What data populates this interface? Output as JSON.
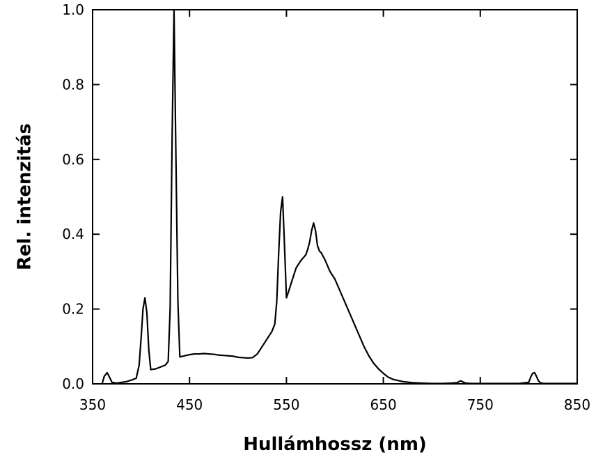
{
  "chart_data": {
    "type": "line",
    "title": "",
    "xlabel": "Hullámhossz (nm)",
    "ylabel": "Rel. intenzitás",
    "xlim": [
      350,
      850
    ],
    "ylim": [
      0,
      1.0
    ],
    "x_ticks": [
      350,
      450,
      550,
      650,
      750,
      850
    ],
    "x_tick_labels": [
      "350",
      "450",
      "550",
      "650",
      "750",
      "850"
    ],
    "y_ticks": [
      0,
      0.2,
      0.4,
      0.6,
      0.8,
      1.0
    ],
    "y_tick_labels": [
      "0.0",
      "0.2",
      "0.4",
      "0.6",
      "0.8",
      "1.0"
    ],
    "grid": false,
    "line_color": "#000000",
    "series": [
      {
        "name": "",
        "x": [
          360,
          362,
          365,
          367,
          370,
          375,
          380,
          385,
          390,
          395,
          398,
          400,
          402,
          404,
          406,
          408,
          410,
          415,
          420,
          425,
          428,
          430,
          432,
          434,
          436,
          438,
          440,
          445,
          450,
          455,
          460,
          465,
          470,
          475,
          480,
          485,
          490,
          495,
          500,
          505,
          510,
          515,
          520,
          525,
          530,
          535,
          538,
          540,
          542,
          544,
          546,
          548,
          550,
          552,
          555,
          560,
          565,
          570,
          572,
          574,
          576,
          578,
          580,
          582,
          584,
          586,
          590,
          595,
          600,
          605,
          610,
          615,
          620,
          625,
          630,
          635,
          640,
          645,
          650,
          655,
          660,
          670,
          680,
          690,
          700,
          710,
          720,
          726,
          728,
          730,
          732,
          735,
          740,
          750,
          760,
          770,
          780,
          790,
          800,
          802,
          804,
          806,
          808,
          810,
          812,
          815,
          820,
          830,
          840,
          850
        ],
        "y": [
          0.002,
          0.02,
          0.03,
          0.02,
          0.004,
          0.002,
          0.004,
          0.006,
          0.01,
          0.015,
          0.05,
          0.12,
          0.2,
          0.23,
          0.19,
          0.09,
          0.038,
          0.04,
          0.045,
          0.05,
          0.06,
          0.2,
          0.65,
          1.0,
          0.6,
          0.22,
          0.072,
          0.075,
          0.078,
          0.08,
          0.08,
          0.081,
          0.08,
          0.079,
          0.077,
          0.076,
          0.075,
          0.074,
          0.071,
          0.07,
          0.069,
          0.07,
          0.08,
          0.1,
          0.12,
          0.14,
          0.16,
          0.22,
          0.35,
          0.46,
          0.5,
          0.37,
          0.23,
          0.245,
          0.27,
          0.31,
          0.33,
          0.345,
          0.36,
          0.38,
          0.41,
          0.43,
          0.41,
          0.37,
          0.355,
          0.35,
          0.33,
          0.3,
          0.28,
          0.25,
          0.22,
          0.19,
          0.16,
          0.13,
          0.1,
          0.075,
          0.055,
          0.04,
          0.028,
          0.018,
          0.012,
          0.006,
          0.003,
          0.002,
          0.001,
          0.001,
          0.002,
          0.003,
          0.006,
          0.008,
          0.005,
          0.002,
          0.001,
          0.001,
          0.001,
          0.001,
          0.001,
          0.001,
          0.004,
          0.018,
          0.028,
          0.03,
          0.02,
          0.008,
          0.003,
          0.001,
          0.001,
          0.001,
          0.001,
          0.001
        ]
      }
    ]
  }
}
